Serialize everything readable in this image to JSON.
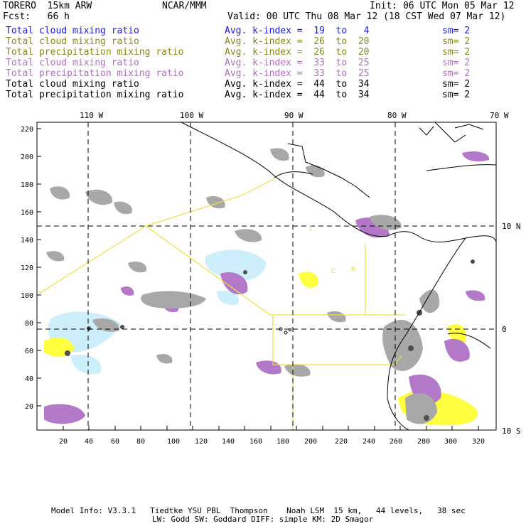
{
  "header": {
    "model": "TORERO  15km ARW",
    "center": "NCAR/MMM",
    "init": "Init: 06 UTC Mon 05 Mar 12",
    "fcst": "Fcst:   66 h",
    "valid": "Valid: 00 UTC Thu 08 Mar 12 (18 CST Wed 07 Mar 12)"
  },
  "legend": [
    {
      "field": "Total cloud mixing ratio",
      "index": "Avg. k-index =  19  to   4",
      "sm": "sm= 2",
      "color": "#1a1ae0"
    },
    {
      "field": "Total cloud mixing ratio",
      "index": "Avg. k-index =  26  to  20",
      "sm": "sm= 2",
      "color": "#8a8a1a"
    },
    {
      "field": "Total precipitation mixing ratio",
      "index": "Avg. k-index =  26  to  20",
      "sm": "sm= 2",
      "color": "#8a8a1a"
    },
    {
      "field": "Total cloud mixing ratio",
      "index": "Avg. k-index =  33  to  25",
      "sm": "sm= 2",
      "color": "#b070c0"
    },
    {
      "field": "Total precipitation mixing ratio",
      "index": "Avg. k-index =  33  to  25",
      "sm": "sm= 2",
      "color": "#b070c0"
    },
    {
      "field": "Total cloud mixing ratio",
      "index": "Avg. k-index =  44  to  34",
      "sm": "sm= 2",
      "color": "#000000"
    },
    {
      "field": "Total precipitation mixing ratio",
      "index": "Avg. k-index =  44  to  34",
      "sm": "sm= 2",
      "color": "#000000"
    }
  ],
  "axes": {
    "top_lon": [
      "110 W",
      "100 W",
      "90 W",
      "80 W",
      "70 W"
    ],
    "right_lat": [
      "10 N",
      "0",
      "10 S"
    ],
    "left_y": [
      "220",
      "200",
      "180",
      "160",
      "140",
      "120",
      "100",
      "80",
      "60",
      "40",
      "20"
    ],
    "bottom_x": [
      "20",
      "40",
      "60",
      "80",
      "100",
      "120",
      "140",
      "160",
      "180",
      "200",
      "220",
      "240",
      "260",
      "280",
      "300",
      "320"
    ]
  },
  "map_labels": [
    "I",
    "C",
    "R"
  ],
  "footer": {
    "line1": "Model Info: V3.3.1   Tiedtke YSU PBL  Thompson    Noah LSM  15 km,   44 levels,   38 sec",
    "line2": "LW: Godd SW: Goddard DIFF: simple KM: 2D Smagor"
  },
  "colors": {
    "gray": "#a8a8a8",
    "magenta": "#b478c8",
    "lightblue": "#cdeffb",
    "yellow": "#ffff40",
    "dark": "#505050",
    "box_outline": "#f0e040"
  }
}
